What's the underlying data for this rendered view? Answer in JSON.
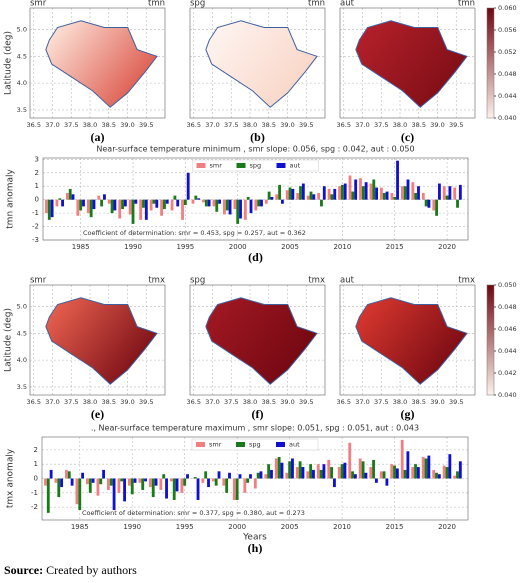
{
  "chart_data": [
    {
      "type": "map",
      "ylabel": "Latitude (deg)",
      "xlim": [
        36.4,
        40.0
      ],
      "ylim": [
        3.35,
        5.4
      ],
      "xticks": [
        36.5,
        {
          "value": 37,
          "label": "37.0"
        },
        37.5,
        {
          "value": 38,
          "label": "38.0"
        },
        38.5,
        {
          "value": 39,
          "label": "39.0"
        },
        39.5
      ],
      "yticks": [
        3.5,
        {
          "value": 4,
          "label": "4.0"
        },
        4.5,
        {
          "value": 5,
          "label": "5.0"
        }
      ],
      "colorbar": {
        "lim": [
          0.04,
          0.06
        ],
        "colors": [
          "#fdf1ec",
          "#6e0610"
        ],
        "ticks": [
          {
            "value": 0.04,
            "label": "0.040"
          },
          {
            "value": 0.044,
            "label": "0.044"
          },
          {
            "value": 0.048,
            "label": "0.048"
          },
          {
            "value": 0.052,
            "label": "0.052"
          },
          {
            "value": 0.056,
            "label": "0.056"
          },
          {
            "value": 0.06,
            "label": "0.060"
          }
        ]
      },
      "panels": [
        {
          "season": "smr",
          "variable": "tmn",
          "caption": "(a)",
          "colors": [
            "#fde3d8",
            "#d9483c"
          ]
        },
        {
          "season": "spg",
          "variable": "tmn",
          "caption": "(b)",
          "colors": [
            "#fef4f0",
            "#f8d2c2"
          ]
        },
        {
          "season": "aut",
          "variable": "tmn",
          "caption": "(c)",
          "colors": [
            "#b3202a",
            "#7a0c14"
          ]
        }
      ]
    },
    {
      "type": "bar",
      "title": "Near-surface temperature minimum , smr slope: 0.056, spg : 0.042, aut : 0.050",
      "annotation": "Coefficient of determination: smr = 0.453,  spg = 0.257,  aut = 0.362",
      "ylabel": "tmn anomaly",
      "caption": "(d)",
      "grid": true,
      "legend": "upper center",
      "x": [
        1982,
        1983,
        1984,
        1985,
        1986,
        1987,
        1988,
        1989,
        1990,
        1991,
        1992,
        1993,
        1994,
        1995,
        1996,
        1997,
        1998,
        1999,
        2000,
        2001,
        2002,
        2003,
        2004,
        2005,
        2006,
        2007,
        2008,
        2009,
        2010,
        2011,
        2012,
        2013,
        2014,
        2015,
        2016,
        2017,
        2018,
        2019,
        2020,
        2021
      ],
      "xlim": [
        1981.4,
        2022
      ],
      "xticks": [
        1985,
        1990,
        1995,
        2000,
        2005,
        2010,
        2015,
        2020
      ],
      "ylim": [
        -3,
        3.1
      ],
      "yticks": [
        -3,
        -2,
        -1,
        0,
        1,
        2,
        3
      ],
      "series": [
        {
          "name": "smr",
          "color": "#f08080",
          "values": [
            -1.0,
            -0.5,
            0.5,
            -1.2,
            -1.0,
            0.3,
            -0.3,
            -1.4,
            -1.1,
            -1.5,
            -0.8,
            -1.2,
            -0.8,
            -1.5,
            -0.3,
            -0.2,
            -0.5,
            -1.1,
            -0.7,
            -1.5,
            -0.8,
            -0.3,
            0.4,
            0.7,
            0.5,
            0.3,
            0.5,
            0.8,
            1.0,
            1.8,
            1.6,
            1.2,
            0.9,
            0.5,
            1.0,
            1.3,
            0.5,
            -0.8,
            1.0,
            0.9
          ]
        },
        {
          "name": "spg",
          "color": "#1a7a1a",
          "values": [
            -1.5,
            0.1,
            0.8,
            -0.8,
            -1.3,
            -0.5,
            -1.0,
            -0.7,
            -1.8,
            -0.6,
            -0.3,
            -0.7,
            0.3,
            -0.4,
            0.3,
            -0.5,
            -0.9,
            -0.8,
            -1.8,
            0.2,
            -0.5,
            0.6,
            1.1,
            0.9,
            1.0,
            0.6,
            -0.5,
            0.4,
            1.1,
            0.6,
            1.0,
            1.5,
            0.5,
            0.2,
            1.0,
            0.5,
            -0.5,
            -1.2,
            0.3,
            -0.6
          ]
        },
        {
          "name": "aut",
          "color": "#1010d0",
          "values": [
            -1.3,
            -0.5,
            0.4,
            -0.5,
            -0.7,
            0.4,
            -0.8,
            -0.5,
            -0.3,
            -1.5,
            -0.6,
            -0.3,
            -0.5,
            2.0,
            0.1,
            -0.5,
            -0.3,
            -1.1,
            -1.4,
            -1.0,
            -0.5,
            0.2,
            -0.3,
            0.8,
            1.2,
            0.4,
            1.0,
            0.8,
            1.2,
            1.5,
            1.3,
            0.9,
            0.6,
            2.9,
            1.5,
            1.0,
            -0.6,
            1.2,
            1.0,
            1.1
          ]
        }
      ]
    },
    {
      "type": "map",
      "ylabel": "Latitude (deg)",
      "xlim": [
        36.4,
        40.0
      ],
      "ylim": [
        3.35,
        5.4
      ],
      "xticks": [
        36.5,
        {
          "value": 37,
          "label": "37.0"
        },
        37.5,
        {
          "value": 38,
          "label": "38.0"
        },
        38.5,
        {
          "value": 39,
          "label": "39.0"
        },
        39.5
      ],
      "yticks": [
        3.5,
        {
          "value": 4,
          "label": "4.0"
        },
        4.5,
        {
          "value": 5,
          "label": "5.0"
        }
      ],
      "colorbar": {
        "lim": [
          0.04,
          0.05
        ],
        "colors": [
          "#fdf1ec",
          "#6e0610"
        ],
        "ticks": [
          {
            "value": 0.04,
            "label": "0.040"
          },
          {
            "value": 0.042,
            "label": "0.042"
          },
          {
            "value": 0.044,
            "label": "0.044"
          },
          {
            "value": 0.046,
            "label": "0.046"
          },
          {
            "value": 0.048,
            "label": "0.048"
          },
          {
            "value": 0.05,
            "label": "0.050"
          }
        ]
      },
      "panels": [
        {
          "season": "smr",
          "variable": "tmx",
          "caption": "(e)",
          "colors": [
            "#e8604f",
            "#6e0610"
          ]
        },
        {
          "season": "spg",
          "variable": "tmx",
          "caption": "(f)",
          "colors": [
            "#a01822",
            "#6e0610"
          ]
        },
        {
          "season": "aut",
          "variable": "tmx",
          "caption": "(g)",
          "colors": [
            "#d8372f",
            "#6e0610"
          ]
        }
      ]
    },
    {
      "type": "bar",
      "title": "., Near-surface temperature maximum , smr slope: 0.051, spg : 0.051, aut : 0.043",
      "annotation": "Coefficient of determination: smr = 0.377,  spg = 0.380,  aut = 0.273",
      "ylabel": "tmx anomaly",
      "xlabel": "Years",
      "caption": "(h)",
      "grid": true,
      "legend": "upper center",
      "x": [
        1982,
        1983,
        1984,
        1985,
        1986,
        1987,
        1988,
        1989,
        1990,
        1991,
        1992,
        1993,
        1994,
        1995,
        1996,
        1997,
        1998,
        1999,
        2000,
        2001,
        2002,
        2003,
        2004,
        2005,
        2006,
        2007,
        2008,
        2009,
        2010,
        2011,
        2012,
        2013,
        2014,
        2015,
        2016,
        2017,
        2018,
        2019,
        2020,
        2021
      ],
      "xlim": [
        1981.4,
        2022
      ],
      "xticks": [
        1985,
        1990,
        1995,
        2000,
        2005,
        2010,
        2015,
        2020
      ],
      "ylim": [
        -2.9,
        2.9
      ],
      "yticks": [
        -2,
        -1,
        0,
        1,
        2
      ],
      "series": [
        {
          "name": "smr",
          "color": "#f08080",
          "values": [
            -0.5,
            -0.3,
            0.6,
            -1.8,
            -0.4,
            -1.2,
            -0.8,
            -1.0,
            -0.5,
            -0.3,
            -0.6,
            -0.8,
            -0.2,
            -1.0,
            0.0,
            -0.3,
            -0.2,
            -0.5,
            -1.5,
            -1.0,
            -0.7,
            0.3,
            1.4,
            0.4,
            0.8,
            0.5,
            1.0,
            1.3,
            0.8,
            2.5,
            1.4,
            0.8,
            0.5,
            1.0,
            2.7,
            0.8,
            1.5,
            0.6,
            0.9,
            0.2
          ]
        },
        {
          "name": "spg",
          "color": "#1a7a1a",
          "values": [
            -2.4,
            -1.3,
            0.5,
            -2.2,
            -1.0,
            -0.4,
            -0.5,
            -0.2,
            -1.1,
            -0.8,
            -1.3,
            0.3,
            -1.5,
            -0.5,
            0.1,
            0.5,
            -0.5,
            -1.0,
            -1.5,
            -0.3,
            0.4,
            1.0,
            1.5,
            1.2,
            1.2,
            1.0,
            0.6,
            0.8,
            1.0,
            0.5,
            1.2,
            1.3,
            0.5,
            0.9,
            0.6,
            1.0,
            1.4,
            0.4,
            0.8,
            0.5
          ]
        },
        {
          "name": "aut",
          "color": "#1010d0",
          "values": [
            0.6,
            -0.6,
            -0.5,
            0.4,
            -0.3,
            0.6,
            -2.2,
            -1.6,
            -0.3,
            -0.2,
            -0.5,
            -1.4,
            -0.9,
            0.3,
            -1.5,
            -0.6,
            0.5,
            0.4,
            0.3,
            0.3,
            0.5,
            0.6,
            1.1,
            1.4,
            0.8,
            0.6,
            1.0,
            -0.6,
            1.1,
            0.3,
            0.4,
            -0.3,
            -0.5,
            0.7,
            1.9,
            0.8,
            1.6,
            0.3,
            1.7,
            1.2
          ]
        }
      ]
    }
  ],
  "source": {
    "label": "Source:",
    "text": "Created by authors"
  }
}
